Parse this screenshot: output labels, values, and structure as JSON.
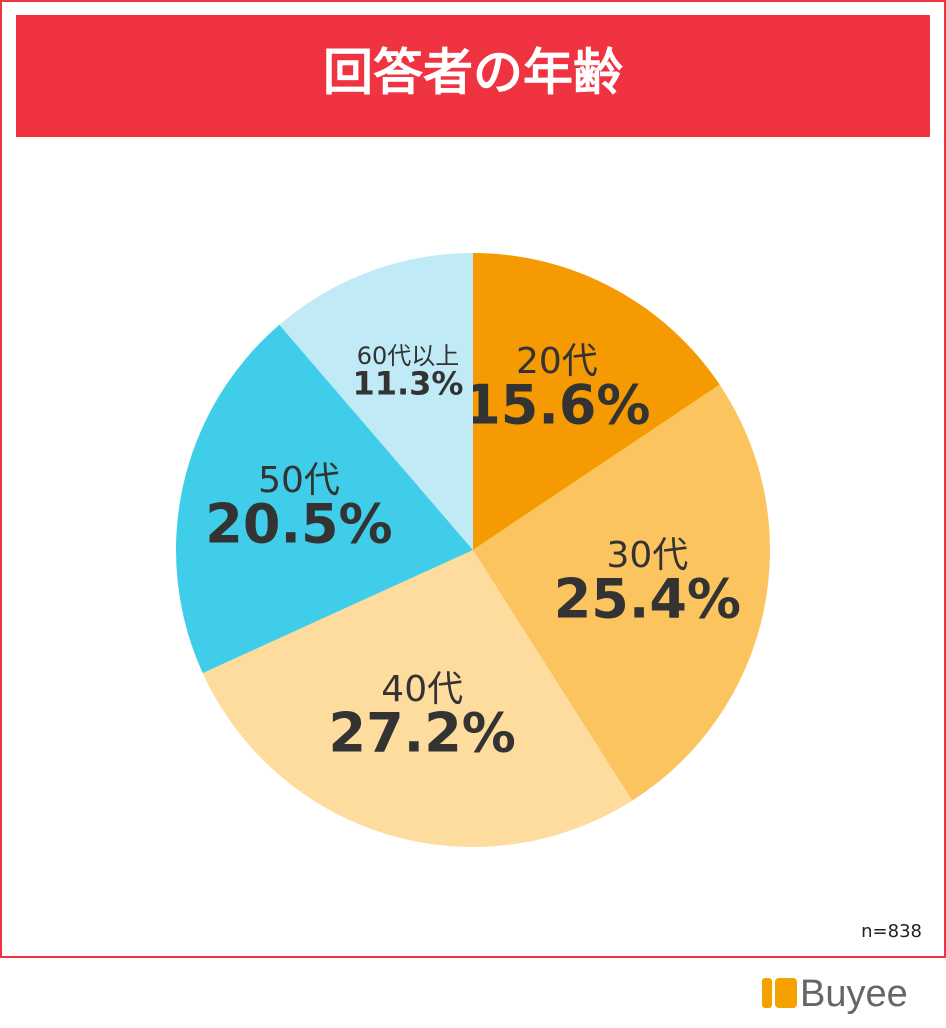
{
  "chart_data": {
    "type": "pie",
    "title": "回答者の年齢",
    "categories": [
      "20代",
      "30代",
      "40代",
      "50代",
      "60代以上"
    ],
    "values": [
      15.6,
      25.4,
      27.2,
      20.5,
      11.3
    ],
    "value_labels": [
      "15.6%",
      "25.4%",
      "27.2%",
      "20.5%",
      "11.3%"
    ],
    "colors": [
      "#f59a00",
      "#fbc45f",
      "#fddc9e",
      "#3fcde9",
      "#bfeaf6"
    ],
    "note": "n=838"
  },
  "footer": {
    "logo": "Buyee"
  }
}
